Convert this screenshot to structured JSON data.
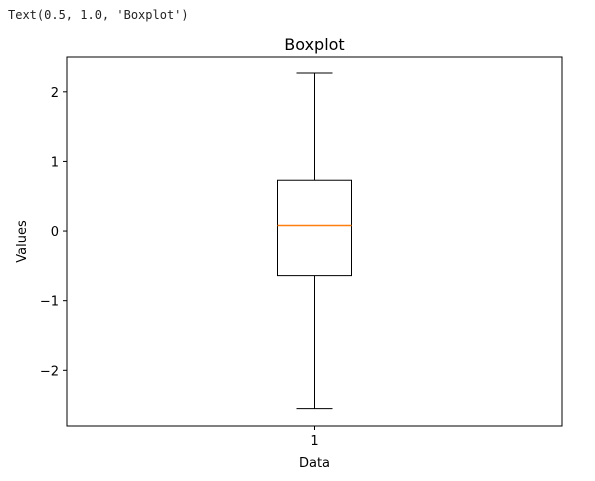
{
  "output_text": "Text(0.5, 1.0, 'Boxplot')",
  "chart_data": {
    "type": "boxplot",
    "title": "Boxplot",
    "xlabel": "Data",
    "ylabel": "Values",
    "categories": [
      "1"
    ],
    "boxes": [
      {
        "whisker_low": -2.55,
        "q1": -0.64,
        "median": 0.08,
        "q3": 0.73,
        "whisker_high": 2.27
      }
    ],
    "ylim": [
      -2.8,
      2.5
    ],
    "yticks": [
      -2,
      -1,
      0,
      1,
      2
    ],
    "ytick_labels": [
      "−2",
      "−1",
      "0",
      "1",
      "2"
    ],
    "grid": false,
    "colors": {
      "box": "#000000",
      "median": "#ff7f0e"
    }
  }
}
